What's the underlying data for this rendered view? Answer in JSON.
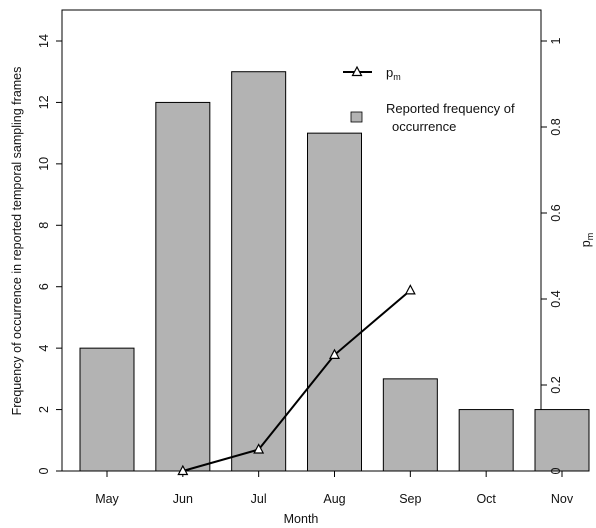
{
  "chart_data": {
    "type": "bar",
    "categories": [
      "May",
      "Jun",
      "Jul",
      "Aug",
      "Sep",
      "Oct",
      "Nov"
    ],
    "series": [
      {
        "name": "Reported frequency of occurrence",
        "type": "bar",
        "axis": "left",
        "values": [
          4,
          12,
          13,
          11,
          3,
          2,
          2
        ],
        "color": "#b3b3b3"
      },
      {
        "name": "p_m",
        "type": "line",
        "axis": "right",
        "marker": "open-triangle",
        "x": [
          "Jun",
          "Jul",
          "Aug",
          "Sep"
        ],
        "values": [
          0.0,
          0.05,
          0.27,
          0.42
        ],
        "color": "#000000"
      }
    ],
    "xlabel": "Month",
    "ylabel": "Frequency of occurrence in reported temporal sampling frames",
    "ylabel_right_main": "p",
    "ylabel_right_sub": "m",
    "ylim": [
      0,
      14
    ],
    "yticks": [
      0,
      2,
      4,
      6,
      8,
      10,
      12,
      14
    ],
    "ylim_right": [
      0,
      1
    ],
    "yticks_right": [
      0,
      0.2,
      0.4,
      0.6,
      0.8,
      1
    ],
    "ytick_labels_right": [
      "0",
      "0.2",
      "0.4",
      "0.6",
      "0.8",
      "1"
    ],
    "grid": false,
    "legend": {
      "position": "top-right",
      "line_label_main": "p",
      "line_label_sub": "m",
      "bar_label_line1": "Reported frequency of",
      "bar_label_line2": "occurrence"
    }
  }
}
